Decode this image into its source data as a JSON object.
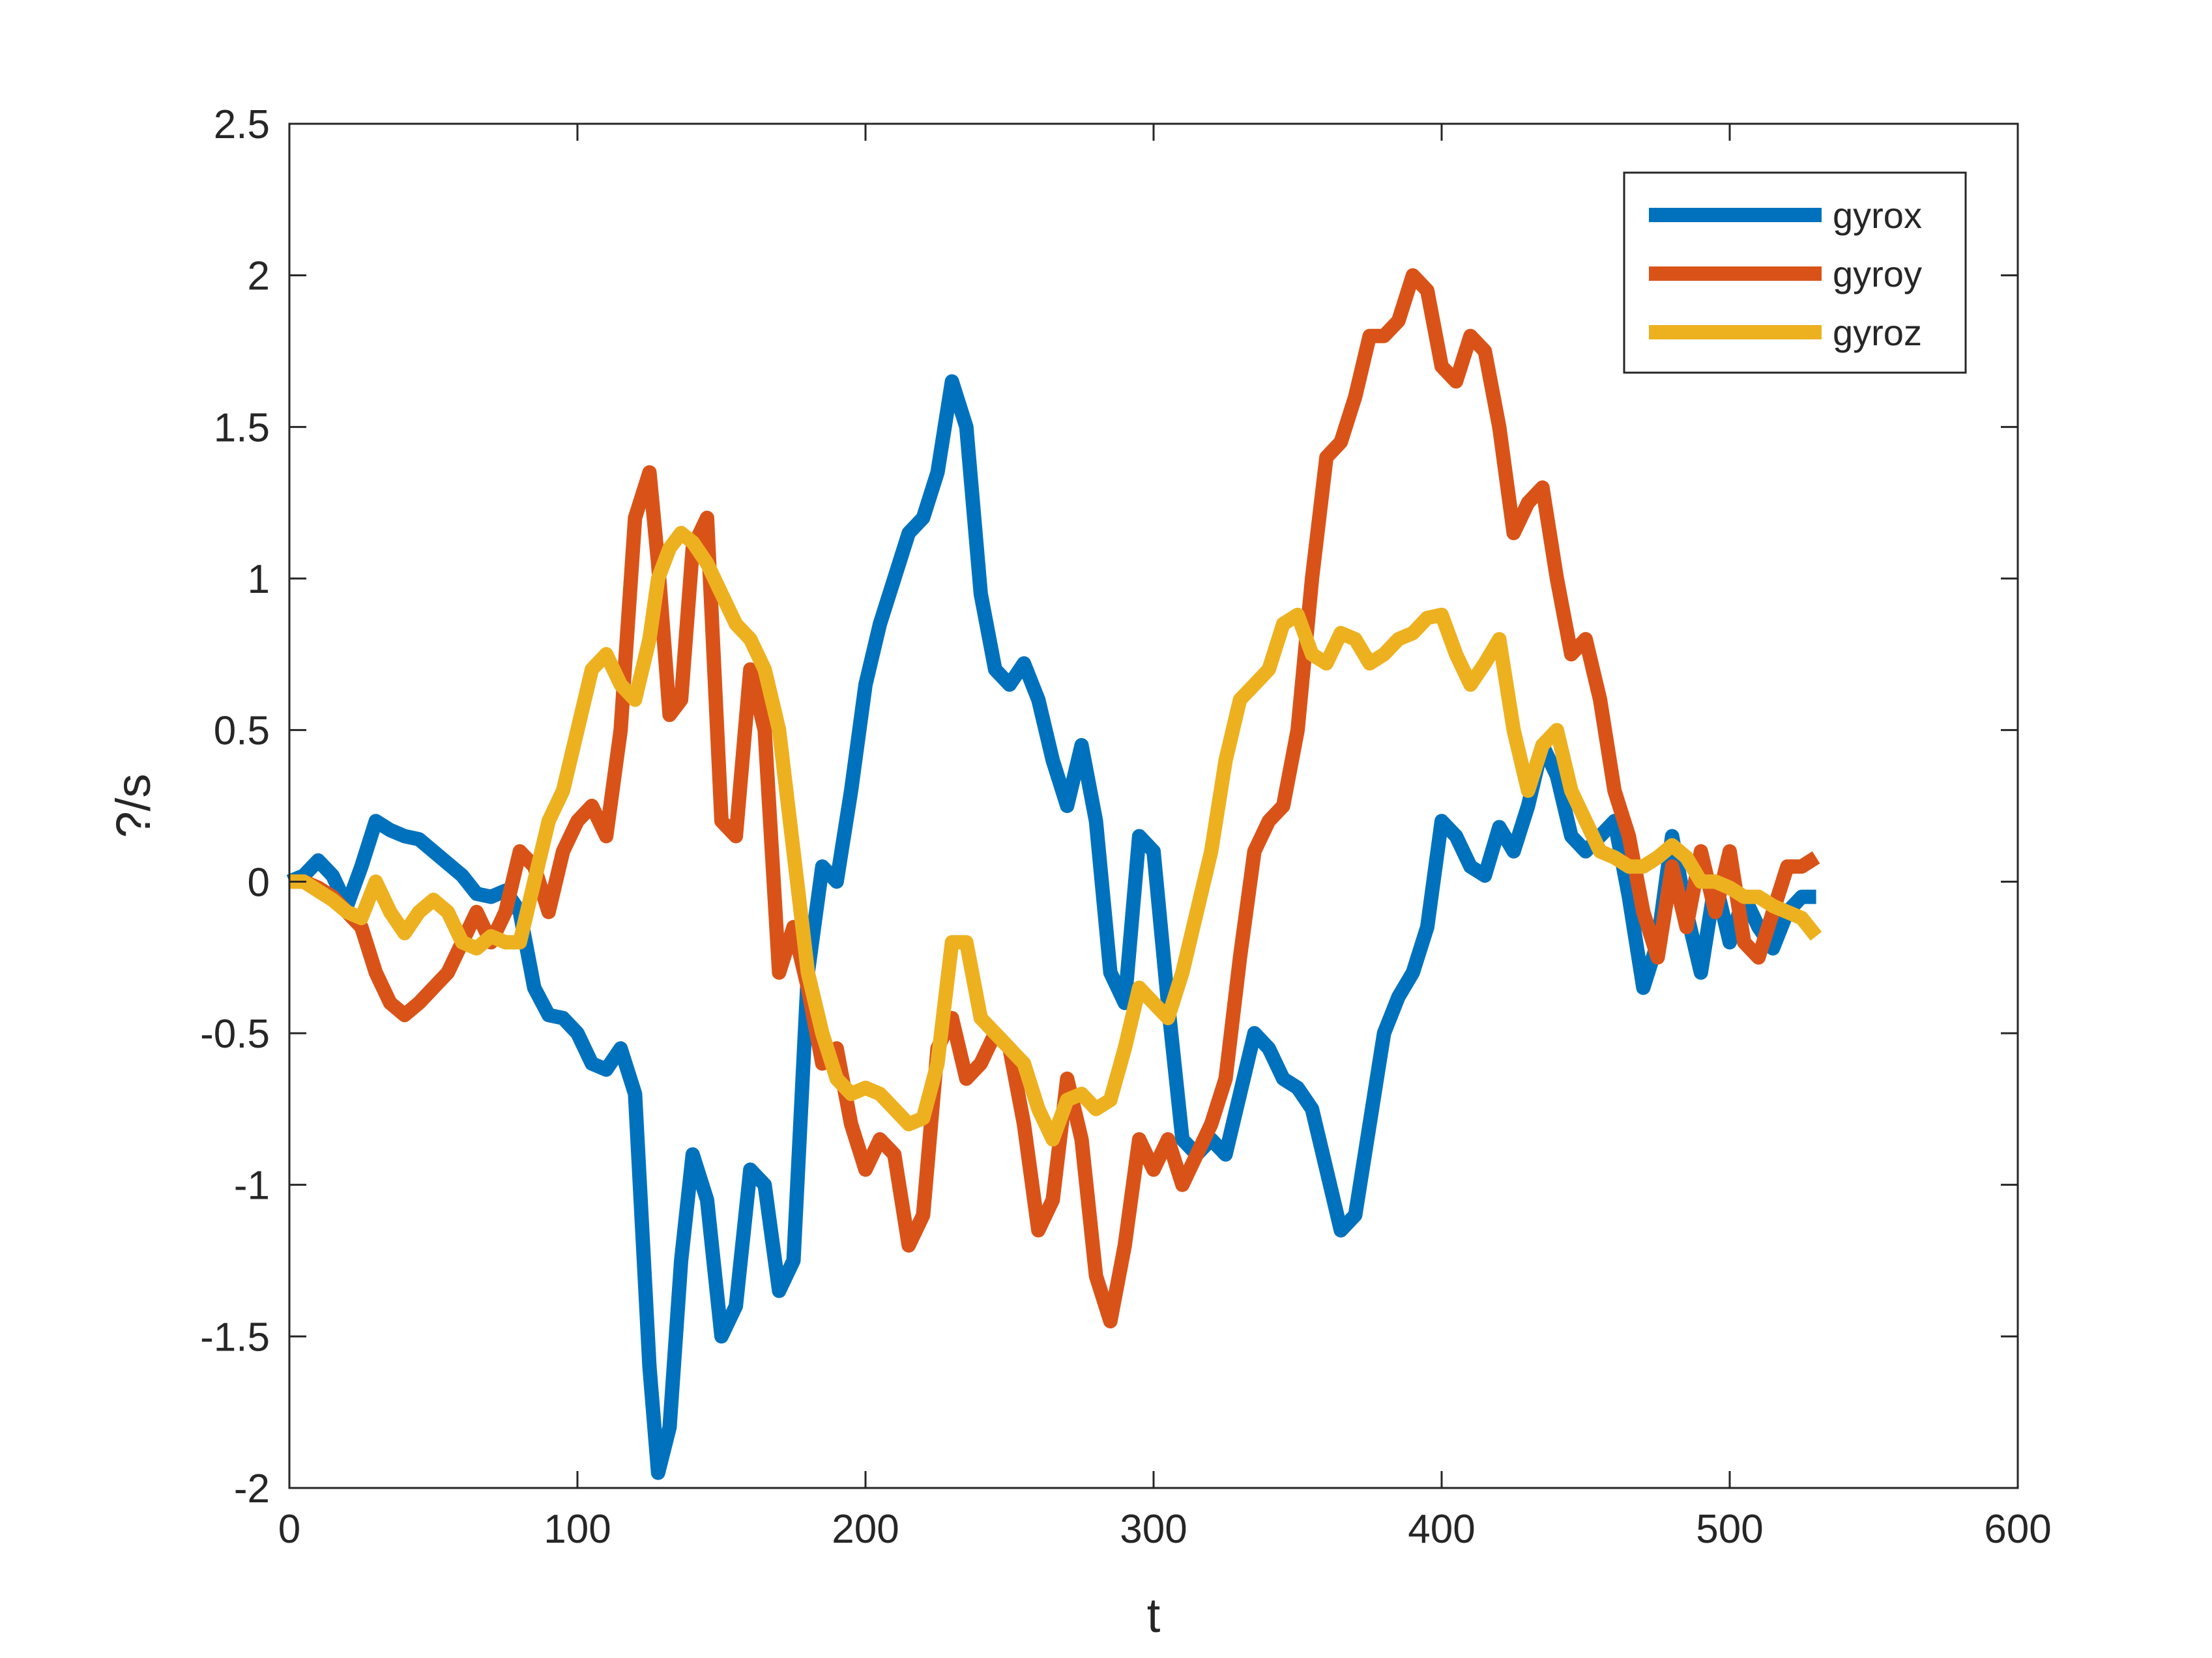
{
  "chart_data": {
    "type": "line",
    "title": "",
    "xlabel": "t",
    "ylabel": "?/s",
    "xlim": [
      0,
      600
    ],
    "ylim": [
      -2,
      2.5
    ],
    "xticks": [
      0,
      100,
      200,
      300,
      400,
      500,
      600
    ],
    "yticks": [
      -2,
      -1.5,
      -1,
      -0.5,
      0,
      0.5,
      1,
      1.5,
      2,
      2.5
    ],
    "grid": false,
    "legend_position": "top-right",
    "series": [
      {
        "name": "gyrox",
        "color": "#0072BD",
        "x": [
          0,
          5,
          10,
          15,
          20,
          25,
          30,
          35,
          40,
          45,
          50,
          55,
          60,
          65,
          70,
          75,
          80,
          85,
          90,
          95,
          100,
          105,
          110,
          115,
          120,
          125,
          128,
          132,
          136,
          140,
          145,
          150,
          155,
          160,
          165,
          170,
          175,
          180,
          185,
          190,
          195,
          200,
          205,
          210,
          215,
          220,
          225,
          230,
          235,
          240,
          245,
          250,
          255,
          260,
          265,
          270,
          275,
          280,
          285,
          290,
          295,
          300,
          305,
          310,
          315,
          320,
          325,
          330,
          335,
          340,
          345,
          350,
          355,
          360,
          365,
          370,
          375,
          380,
          385,
          390,
          395,
          400,
          405,
          410,
          415,
          420,
          425,
          430,
          435,
          440,
          445,
          450,
          455,
          460,
          465,
          470,
          475,
          480,
          485,
          490,
          495,
          500,
          505,
          510,
          515,
          520,
          525,
          530
        ],
        "y": [
          0.0,
          0.02,
          0.07,
          0.02,
          -0.08,
          0.05,
          0.2,
          0.17,
          0.15,
          0.14,
          0.1,
          0.06,
          0.02,
          -0.04,
          -0.05,
          -0.03,
          -0.1,
          -0.35,
          -0.44,
          -0.45,
          -0.5,
          -0.6,
          -0.62,
          -0.55,
          -0.7,
          -1.6,
          -1.95,
          -1.8,
          -1.25,
          -0.9,
          -1.05,
          -1.5,
          -1.4,
          -0.95,
          -1.0,
          -1.35,
          -1.25,
          -0.3,
          0.05,
          0.0,
          0.3,
          0.65,
          0.85,
          1.0,
          1.15,
          1.2,
          1.35,
          1.65,
          1.5,
          0.95,
          0.7,
          0.65,
          0.72,
          0.6,
          0.4,
          0.25,
          0.45,
          0.2,
          -0.3,
          -0.4,
          0.15,
          0.1,
          -0.4,
          -0.85,
          -0.9,
          -0.85,
          -0.9,
          -0.7,
          -0.5,
          -0.55,
          -0.65,
          -0.68,
          -0.75,
          -0.95,
          -1.15,
          -1.1,
          -0.8,
          -0.5,
          -0.38,
          -0.3,
          -0.15,
          0.2,
          0.15,
          0.05,
          0.02,
          0.18,
          0.1,
          0.25,
          0.45,
          0.35,
          0.15,
          0.1,
          0.15,
          0.2,
          -0.05,
          -0.35,
          -0.2,
          0.15,
          -0.1,
          -0.3,
          0.0,
          -0.2,
          -0.05,
          -0.15,
          -0.22,
          -0.1,
          -0.05,
          -0.05
        ]
      },
      {
        "name": "gyroy",
        "color": "#D95319",
        "x": [
          0,
          5,
          10,
          15,
          20,
          25,
          30,
          35,
          40,
          45,
          50,
          55,
          60,
          65,
          70,
          75,
          80,
          85,
          90,
          95,
          100,
          105,
          110,
          115,
          120,
          125,
          128,
          132,
          136,
          140,
          145,
          150,
          155,
          160,
          165,
          170,
          175,
          180,
          185,
          190,
          195,
          200,
          205,
          210,
          215,
          220,
          225,
          230,
          235,
          240,
          245,
          250,
          255,
          260,
          265,
          270,
          275,
          280,
          285,
          290,
          295,
          300,
          305,
          310,
          315,
          320,
          325,
          330,
          335,
          340,
          345,
          350,
          355,
          360,
          365,
          370,
          375,
          380,
          385,
          390,
          395,
          400,
          405,
          410,
          415,
          420,
          425,
          430,
          435,
          440,
          445,
          450,
          455,
          460,
          465,
          470,
          475,
          480,
          485,
          490,
          495,
          500,
          505,
          510,
          515,
          520,
          525,
          530
        ],
        "y": [
          0.0,
          0.0,
          -0.02,
          -0.05,
          -0.1,
          -0.15,
          -0.3,
          -0.4,
          -0.44,
          -0.4,
          -0.35,
          -0.3,
          -0.2,
          -0.1,
          -0.2,
          -0.1,
          0.1,
          0.05,
          -0.1,
          0.1,
          0.2,
          0.25,
          0.15,
          0.5,
          1.2,
          1.35,
          1.05,
          0.55,
          0.6,
          1.1,
          1.2,
          0.2,
          0.15,
          0.7,
          0.5,
          -0.3,
          -0.15,
          -0.35,
          -0.6,
          -0.55,
          -0.8,
          -0.95,
          -0.85,
          -0.9,
          -1.2,
          -1.1,
          -0.55,
          -0.45,
          -0.65,
          -0.6,
          -0.5,
          -0.55,
          -0.8,
          -1.15,
          -1.05,
          -0.65,
          -0.85,
          -1.3,
          -1.45,
          -1.2,
          -0.85,
          -0.95,
          -0.85,
          -1.0,
          -0.9,
          -0.8,
          -0.65,
          -0.25,
          0.1,
          0.2,
          0.25,
          0.5,
          1.0,
          1.4,
          1.45,
          1.6,
          1.8,
          1.8,
          1.85,
          2.0,
          1.95,
          1.7,
          1.65,
          1.8,
          1.75,
          1.5,
          1.15,
          1.25,
          1.3,
          1.0,
          0.75,
          0.8,
          0.6,
          0.3,
          0.15,
          -0.1,
          -0.25,
          0.05,
          -0.15,
          0.1,
          -0.1,
          0.1,
          -0.2,
          -0.25,
          -0.1,
          0.05,
          0.05,
          0.08
        ]
      },
      {
        "name": "gyroz",
        "color": "#EDB120",
        "x": [
          0,
          5,
          10,
          15,
          20,
          25,
          30,
          35,
          40,
          45,
          50,
          55,
          60,
          65,
          70,
          75,
          80,
          85,
          90,
          95,
          100,
          105,
          110,
          115,
          120,
          125,
          128,
          132,
          136,
          140,
          145,
          150,
          155,
          160,
          165,
          170,
          175,
          180,
          185,
          190,
          195,
          200,
          205,
          210,
          215,
          220,
          225,
          230,
          235,
          240,
          245,
          250,
          255,
          260,
          265,
          270,
          275,
          280,
          285,
          290,
          295,
          300,
          305,
          310,
          315,
          320,
          325,
          330,
          335,
          340,
          345,
          350,
          355,
          360,
          365,
          370,
          375,
          380,
          385,
          390,
          395,
          400,
          405,
          410,
          415,
          420,
          425,
          430,
          435,
          440,
          445,
          450,
          455,
          460,
          465,
          470,
          475,
          480,
          485,
          490,
          495,
          500,
          505,
          510,
          515,
          520,
          525,
          530
        ],
        "y": [
          0.0,
          0.0,
          -0.03,
          -0.06,
          -0.1,
          -0.12,
          0.0,
          -0.1,
          -0.17,
          -0.1,
          -0.06,
          -0.1,
          -0.2,
          -0.22,
          -0.18,
          -0.2,
          -0.2,
          0.0,
          0.2,
          0.3,
          0.5,
          0.7,
          0.75,
          0.65,
          0.6,
          0.8,
          1.0,
          1.1,
          1.15,
          1.12,
          1.05,
          0.95,
          0.85,
          0.8,
          0.7,
          0.5,
          0.1,
          -0.3,
          -0.5,
          -0.65,
          -0.7,
          -0.68,
          -0.7,
          -0.75,
          -0.8,
          -0.78,
          -0.6,
          -0.2,
          -0.2,
          -0.45,
          -0.5,
          -0.55,
          -0.6,
          -0.75,
          -0.85,
          -0.72,
          -0.7,
          -0.75,
          -0.72,
          -0.55,
          -0.35,
          -0.4,
          -0.45,
          -0.3,
          -0.1,
          0.1,
          0.4,
          0.6,
          0.65,
          0.7,
          0.85,
          0.88,
          0.75,
          0.72,
          0.82,
          0.8,
          0.72,
          0.75,
          0.8,
          0.82,
          0.87,
          0.88,
          0.75,
          0.65,
          0.72,
          0.8,
          0.5,
          0.3,
          0.45,
          0.5,
          0.3,
          0.2,
          0.1,
          0.08,
          0.05,
          0.05,
          0.08,
          0.12,
          0.08,
          0.0,
          0.0,
          -0.02,
          -0.05,
          -0.05,
          -0.08,
          -0.1,
          -0.12,
          -0.18
        ]
      }
    ]
  }
}
